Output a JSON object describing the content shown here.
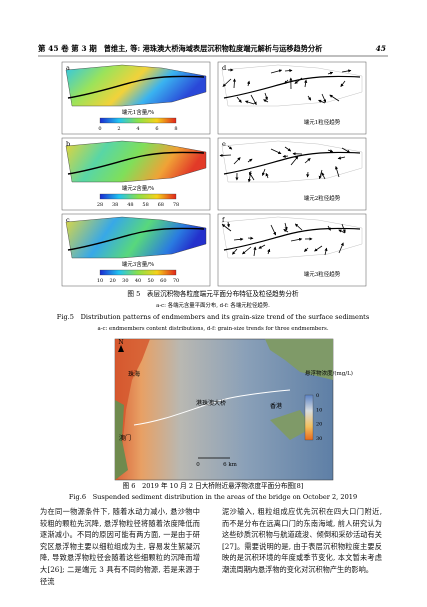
{
  "header": {
    "volume": "第 45 卷 第 3 期",
    "running_title": "曾维主, 等: 港珠澳大桥海域表层沉积物粒度端元解析与运移趋势分析",
    "page": "45"
  },
  "figure5": {
    "panels": [
      {
        "letter": "a",
        "label": "端元1含量/%",
        "ticks": [
          "0",
          "2",
          "4",
          "6",
          "8"
        ]
      },
      {
        "letter": "b",
        "label": "端元2含量/%",
        "ticks": [
          "28",
          "38",
          "48",
          "58",
          "68",
          "78"
        ]
      },
      {
        "letter": "c",
        "label": "端元3含量/%",
        "ticks": [
          "10",
          "20",
          "30",
          "40",
          "50",
          "60",
          "70"
        ]
      },
      {
        "letter": "d",
        "label": "端元1粒径趋势"
      },
      {
        "letter": "e",
        "label": "端元2粒径趋势"
      },
      {
        "letter": "f",
        "label": "端元3粒径趋势"
      }
    ],
    "caption_cn": "图 5　表层沉积物各粒度端元平面分布特征及粒径趋势分析",
    "subcaption_cn": "a-c: 各端元含量平面分布, d-f: 各端元粒径趋势.",
    "caption_en": "Fig.5　Distribution patterns of endmembers and its grain-size trend of the surface sediments",
    "subcaption_en": "a-c: endmembers content distributions, d-f: grain-size trends for three endmembers."
  },
  "figure6": {
    "north": "N",
    "places": [
      "珠海",
      "澳门",
      "港珠澳大桥",
      "香港"
    ],
    "legend_title": "悬浮物浓度/(mg/L)",
    "legend_ticks": [
      "0",
      "10",
      "20",
      "30"
    ],
    "scale": [
      "0",
      "6 km"
    ],
    "caption_cn": "图 6　2019 年 10 月 2 日大桥附近悬浮物浓度平面分布图[8]",
    "caption_en": "Fig.6　Suspended sediment distribution in the areas of the bridge on October 2, 2019"
  },
  "body": {
    "left": "为在同一物源条件下, 随着水动力减小, 悬沙物中较粗的颗粒先沉降, 悬浮物粒径将随着浓度降低而逐渐减小。不同的原因可能有两方面, 一是由于研究区悬浮物主要以细粒组成为主, 容易发生絮凝沉降, 导致悬浮物粒径会随着这些细颗粒的沉降而增大[26]; 二是端元 3 具有不同的物源, 若是来源于径流",
    "right": "泥沙输入, 粗粒组成应优先沉积在四大口门附近, 而不是分布在远离口门的东南海域, 前人研究认为这些砂质沉积物与航道疏浚、倾倒和采砂活动有关[27]。需要说明的是, 由于表层沉积物粒度主要反映的是沉积环境的年度或季节变化, 本文暂未考虑潮流周期内悬浮物的变化对沉积物产生的影响。"
  }
}
